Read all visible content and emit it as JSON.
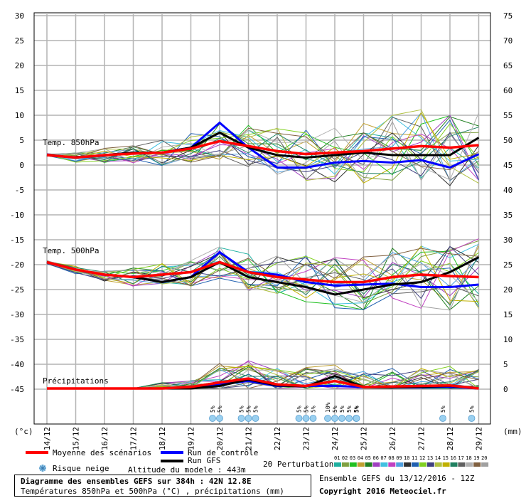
{
  "chart_data": {
    "type": "line",
    "dates": [
      "14/12",
      "15/12",
      "16/12",
      "17/12",
      "18/12",
      "19/12",
      "20/12",
      "21/12",
      "22/12",
      "23/12",
      "24/12",
      "25/12",
      "26/12",
      "27/12",
      "28/12",
      "29/12"
    ],
    "left_ticks": [
      30,
      25,
      20,
      15,
      10,
      5,
      0,
      -5,
      -10,
      -15,
      -20,
      -25,
      -30,
      -35,
      -40,
      -45
    ],
    "right_ticks": [
      75,
      70,
      65,
      60,
      55,
      50,
      45,
      40,
      35,
      30,
      25,
      20,
      15,
      10,
      5,
      0
    ],
    "left_unit": "(°c)",
    "right_unit": "(mm)",
    "section_labels": {
      "t850": "Temp. 850hPa",
      "t500": "Temp. 500hPa",
      "precip": "Précipitations"
    },
    "series": [
      {
        "name": "Moyenne des scénarios",
        "color": "#ff0000",
        "t850": [
          2,
          1.5,
          2,
          2.3,
          2.5,
          3.3,
          4.8,
          3.8,
          2.8,
          2.2,
          2.5,
          2.8,
          3.3,
          3.8,
          3.5,
          4
        ],
        "t500": [
          -19.5,
          -21,
          -22,
          -22.5,
          -22,
          -21.5,
          -19.5,
          -21.5,
          -22.5,
          -23,
          -23.5,
          -23.5,
          -22.5,
          -22,
          -22.3,
          -22.5
        ],
        "precip": [
          0,
          0,
          0,
          0,
          0,
          0.3,
          1.2,
          2,
          0.8,
          0.5,
          1.5,
          0.3,
          0.4,
          0.5,
          0.6,
          0
        ]
      },
      {
        "name": "Run de contrôle",
        "color": "#0000ff",
        "t850": [
          2,
          1.5,
          2,
          2.5,
          2.5,
          3.5,
          8.5,
          3.5,
          -0.5,
          -0.5,
          0.5,
          0.8,
          0.5,
          1,
          -0.5,
          2.2
        ],
        "t500": [
          -19.5,
          -21,
          -22,
          -22.5,
          -23.5,
          -22.5,
          -17.5,
          -21.5,
          -22,
          -23.5,
          -24.2,
          -24,
          -23.8,
          -24.5,
          -24.5,
          -24
        ],
        "precip": [
          0,
          0,
          0,
          0,
          0,
          0.2,
          0.8,
          1.5,
          0.5,
          0.5,
          0.5,
          0.3,
          0.2,
          0.2,
          0.3,
          0
        ]
      },
      {
        "name": "Run GFS",
        "color": "#000000",
        "t850": [
          2,
          1.5,
          2,
          2.5,
          2.5,
          3.5,
          6.5,
          3.5,
          2,
          1.5,
          2,
          2.5,
          2,
          2,
          2,
          5.5
        ],
        "t500": [
          -19.5,
          -21,
          -22,
          -22.5,
          -23.5,
          -22.5,
          -19.5,
          -22.5,
          -23.5,
          -24.5,
          -26,
          -25,
          -24,
          -23.5,
          -21.5,
          -18.5
        ],
        "precip": [
          0,
          0,
          0,
          0,
          0,
          0,
          0.5,
          1.8,
          0.6,
          0.4,
          2.5,
          0.3,
          0.2,
          0.3,
          0.5,
          0
        ]
      }
    ],
    "perturbations": {
      "count": 20,
      "labels": [
        "01",
        "02",
        "03",
        "04",
        "05",
        "06",
        "07",
        "08",
        "09",
        "10",
        "11",
        "12",
        "13",
        "14",
        "15",
        "16",
        "17",
        "18",
        "19",
        "20"
      ],
      "colors": [
        "#1fb0a0",
        "#7fa040",
        "#20c020",
        "#c0a030",
        "#208020",
        "#a040c0",
        "#40c0e0",
        "#c040c0",
        "#50a0e0",
        "#303030",
        "#2060b0",
        "#80d020",
        "#404080",
        "#b0c040",
        "#c0b000",
        "#208060",
        "#606060",
        "#b0b0b0",
        "#806040",
        "#a0a0a0"
      ]
    },
    "snow_risk": [
      {
        "date": "20/12",
        "pct": "5%"
      },
      {
        "date": "20/12",
        "pct": "5%"
      },
      {
        "date": "21/12",
        "pct": "5%"
      },
      {
        "date": "21/12",
        "pct": "5%"
      },
      {
        "date": "21/12",
        "pct": "5%"
      },
      {
        "date": "23/12",
        "pct": "5%"
      },
      {
        "date": "23/12",
        "pct": "5%"
      },
      {
        "date": "23/12",
        "pct": "5%"
      },
      {
        "date": "24/12",
        "pct": "10%"
      },
      {
        "date": "24/12",
        "pct": "5%"
      },
      {
        "date": "24/12",
        "pct": "5%"
      },
      {
        "date": "24/12",
        "pct": "5%"
      },
      {
        "date": "24/12",
        "pct": "5%"
      },
      {
        "date": "25/12",
        "pct": "5%"
      },
      {
        "date": "28/12",
        "pct": "5%"
      },
      {
        "date": "29/12",
        "pct": "5%"
      }
    ],
    "grid": true
  },
  "legend": {
    "mean": "Moyenne des scénarios",
    "control": "Run de contrôle",
    "gfs": "Run GFS",
    "snow": "Risque neige",
    "altitude": "Altitude du modele : 443m",
    "perturbations": "20 Perturbations"
  },
  "footer": {
    "title": "Diagramme des ensembles GEFS sur 384h : 42N 12.8E",
    "subtitle": "Températures 850hPa et 500hPa (°C) , précipitations (mm)",
    "ensemble": "Ensemble GEFS du 13/12/2016 - 12Z",
    "copyright": "Copyright 2016 Meteociel.fr"
  }
}
